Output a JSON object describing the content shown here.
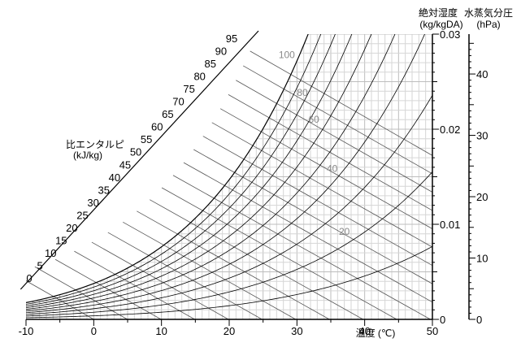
{
  "chart_data": {
    "type": "line",
    "chart_kind": "psychrometric",
    "xlabel": "温度 (℃)",
    "ylabel_right_1": "絶対湿度",
    "ylabel_right_1_unit": "(kg/kgDA)",
    "ylabel_right_2": "水蒸気分圧",
    "ylabel_right_2_unit": "(hPa)",
    "enthalpy_label_1": "比エンタルピ",
    "enthalpy_label_2": "(kJ/kg)",
    "xlim": [
      -10,
      50
    ],
    "ylim_abs_humidity": [
      0,
      0.03
    ],
    "ylim_vapor_pressure": [
      0,
      46.5
    ],
    "x_ticks": [
      "-10",
      "0",
      "10",
      "20",
      "30",
      "40",
      "50"
    ],
    "abs_humidity_ticks": [
      "0",
      "0.01",
      "0.02",
      "0.03"
    ],
    "vapor_pressure_ticks": [
      "0",
      "10",
      "20",
      "30",
      "40"
    ],
    "enthalpy_values": [
      0,
      5,
      10,
      15,
      20,
      25,
      30,
      35,
      40,
      45,
      50,
      55,
      60,
      65,
      70,
      75,
      80,
      85,
      90,
      95
    ],
    "relative_humidity_curves": [
      10,
      20,
      30,
      40,
      50,
      60,
      70,
      80,
      90,
      100
    ],
    "relative_humidity_labels": [
      "100",
      "80",
      "60",
      "40",
      "20"
    ],
    "grid": true,
    "colors": {
      "grid_minor": "#d6d6d6",
      "grid_major": "#bdbdbd",
      "rh_curve": "#000000",
      "enthalpy_line": "#555555",
      "rh_label": "#8a8a8a"
    }
  }
}
